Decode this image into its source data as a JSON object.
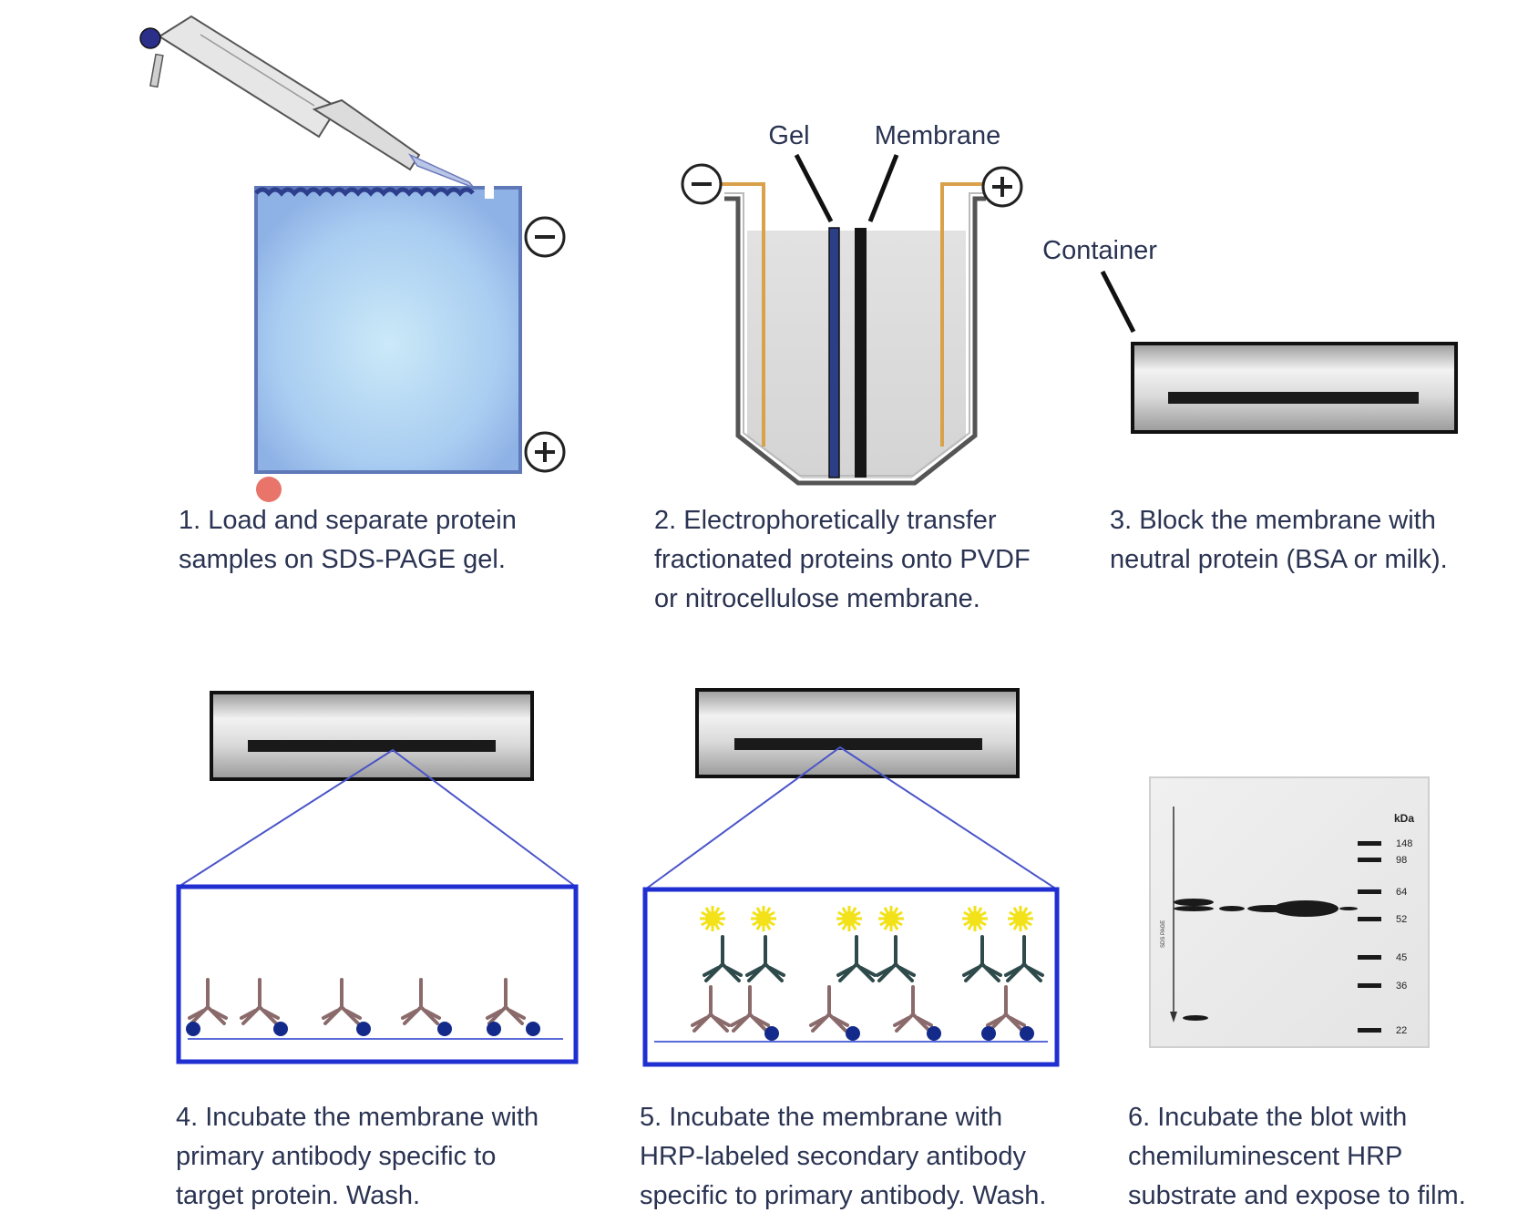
{
  "steps": [
    {
      "lines": [
        "1. Load and separate protein",
        "samples on SDS-PAGE gel."
      ]
    },
    {
      "lines": [
        "2. Electrophoretically transfer",
        "fractionated proteins onto PVDF",
        "or nitrocellulose membrane."
      ]
    },
    {
      "lines": [
        "3. Block the membrane with",
        "neutral protein (BSA or milk)."
      ]
    },
    {
      "lines": [
        "4. Incubate the membrane with",
        "primary antibody specific to",
        "target protein. Wash."
      ]
    },
    {
      "lines": [
        "5. Incubate the membrane with",
        "HRP-labeled secondary antibody",
        "specific to primary antibody. Wash."
      ]
    },
    {
      "lines": [
        "6. Incubate the blot with",
        "chemiluminescent HRP",
        "substrate and expose to film."
      ]
    }
  ],
  "labels": {
    "gel": "Gel",
    "membrane": "Membrane",
    "container": "Container",
    "minus": "−",
    "plus": "+"
  },
  "blot": {
    "unit_label": "kDa",
    "lane_label": "SDS PAGE",
    "markers": [
      "148",
      "98",
      "64",
      "52",
      "45",
      "36",
      "22"
    ]
  },
  "colors": {
    "text": "#2a3352",
    "gel_blue": "#8fb9e8",
    "frame_blue": "#1f2fd1",
    "orange_wire": "#d9a14a",
    "antibody_primary": "#8a6a6a",
    "antibody_secondary": "#2f4a4a",
    "dot": "#142a8a",
    "hrp_glow": "#f3e21a",
    "pink_dot": "#e8746a"
  }
}
